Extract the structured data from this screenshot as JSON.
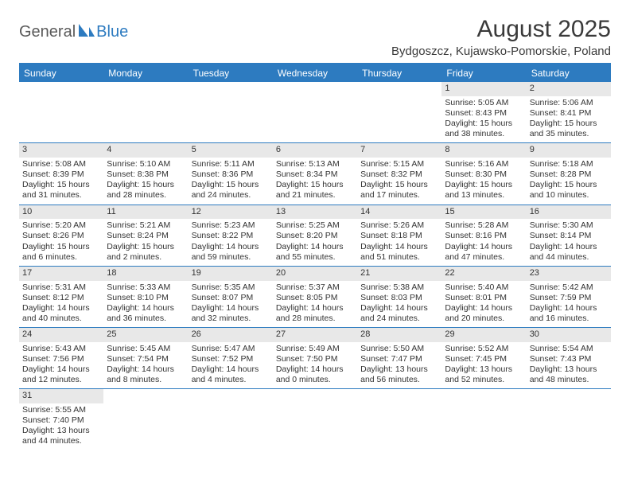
{
  "logo": {
    "text1": "General",
    "text2": "Blue",
    "text1_color": "#5a5a5a",
    "text2_color": "#2d7bc0",
    "icon_color": "#2d7bc0"
  },
  "title": "August 2025",
  "subtitle": "Bydgoszcz, Kujawsko-Pomorskie, Poland",
  "colors": {
    "header_bg": "#2d7bc0",
    "header_text": "#ffffff",
    "daynum_bg": "#e8e8e8",
    "border": "#2d7bc0",
    "text": "#333333"
  },
  "weekdays": [
    "Sunday",
    "Monday",
    "Tuesday",
    "Wednesday",
    "Thursday",
    "Friday",
    "Saturday"
  ],
  "weeks": [
    [
      {
        "n": "",
        "sr": "",
        "ss": "",
        "dl": ""
      },
      {
        "n": "",
        "sr": "",
        "ss": "",
        "dl": ""
      },
      {
        "n": "",
        "sr": "",
        "ss": "",
        "dl": ""
      },
      {
        "n": "",
        "sr": "",
        "ss": "",
        "dl": ""
      },
      {
        "n": "",
        "sr": "",
        "ss": "",
        "dl": ""
      },
      {
        "n": "1",
        "sr": "Sunrise: 5:05 AM",
        "ss": "Sunset: 8:43 PM",
        "dl": "Daylight: 15 hours and 38 minutes."
      },
      {
        "n": "2",
        "sr": "Sunrise: 5:06 AM",
        "ss": "Sunset: 8:41 PM",
        "dl": "Daylight: 15 hours and 35 minutes."
      }
    ],
    [
      {
        "n": "3",
        "sr": "Sunrise: 5:08 AM",
        "ss": "Sunset: 8:39 PM",
        "dl": "Daylight: 15 hours and 31 minutes."
      },
      {
        "n": "4",
        "sr": "Sunrise: 5:10 AM",
        "ss": "Sunset: 8:38 PM",
        "dl": "Daylight: 15 hours and 28 minutes."
      },
      {
        "n": "5",
        "sr": "Sunrise: 5:11 AM",
        "ss": "Sunset: 8:36 PM",
        "dl": "Daylight: 15 hours and 24 minutes."
      },
      {
        "n": "6",
        "sr": "Sunrise: 5:13 AM",
        "ss": "Sunset: 8:34 PM",
        "dl": "Daylight: 15 hours and 21 minutes."
      },
      {
        "n": "7",
        "sr": "Sunrise: 5:15 AM",
        "ss": "Sunset: 8:32 PM",
        "dl": "Daylight: 15 hours and 17 minutes."
      },
      {
        "n": "8",
        "sr": "Sunrise: 5:16 AM",
        "ss": "Sunset: 8:30 PM",
        "dl": "Daylight: 15 hours and 13 minutes."
      },
      {
        "n": "9",
        "sr": "Sunrise: 5:18 AM",
        "ss": "Sunset: 8:28 PM",
        "dl": "Daylight: 15 hours and 10 minutes."
      }
    ],
    [
      {
        "n": "10",
        "sr": "Sunrise: 5:20 AM",
        "ss": "Sunset: 8:26 PM",
        "dl": "Daylight: 15 hours and 6 minutes."
      },
      {
        "n": "11",
        "sr": "Sunrise: 5:21 AM",
        "ss": "Sunset: 8:24 PM",
        "dl": "Daylight: 15 hours and 2 minutes."
      },
      {
        "n": "12",
        "sr": "Sunrise: 5:23 AM",
        "ss": "Sunset: 8:22 PM",
        "dl": "Daylight: 14 hours and 59 minutes."
      },
      {
        "n": "13",
        "sr": "Sunrise: 5:25 AM",
        "ss": "Sunset: 8:20 PM",
        "dl": "Daylight: 14 hours and 55 minutes."
      },
      {
        "n": "14",
        "sr": "Sunrise: 5:26 AM",
        "ss": "Sunset: 8:18 PM",
        "dl": "Daylight: 14 hours and 51 minutes."
      },
      {
        "n": "15",
        "sr": "Sunrise: 5:28 AM",
        "ss": "Sunset: 8:16 PM",
        "dl": "Daylight: 14 hours and 47 minutes."
      },
      {
        "n": "16",
        "sr": "Sunrise: 5:30 AM",
        "ss": "Sunset: 8:14 PM",
        "dl": "Daylight: 14 hours and 44 minutes."
      }
    ],
    [
      {
        "n": "17",
        "sr": "Sunrise: 5:31 AM",
        "ss": "Sunset: 8:12 PM",
        "dl": "Daylight: 14 hours and 40 minutes."
      },
      {
        "n": "18",
        "sr": "Sunrise: 5:33 AM",
        "ss": "Sunset: 8:10 PM",
        "dl": "Daylight: 14 hours and 36 minutes."
      },
      {
        "n": "19",
        "sr": "Sunrise: 5:35 AM",
        "ss": "Sunset: 8:07 PM",
        "dl": "Daylight: 14 hours and 32 minutes."
      },
      {
        "n": "20",
        "sr": "Sunrise: 5:37 AM",
        "ss": "Sunset: 8:05 PM",
        "dl": "Daylight: 14 hours and 28 minutes."
      },
      {
        "n": "21",
        "sr": "Sunrise: 5:38 AM",
        "ss": "Sunset: 8:03 PM",
        "dl": "Daylight: 14 hours and 24 minutes."
      },
      {
        "n": "22",
        "sr": "Sunrise: 5:40 AM",
        "ss": "Sunset: 8:01 PM",
        "dl": "Daylight: 14 hours and 20 minutes."
      },
      {
        "n": "23",
        "sr": "Sunrise: 5:42 AM",
        "ss": "Sunset: 7:59 PM",
        "dl": "Daylight: 14 hours and 16 minutes."
      }
    ],
    [
      {
        "n": "24",
        "sr": "Sunrise: 5:43 AM",
        "ss": "Sunset: 7:56 PM",
        "dl": "Daylight: 14 hours and 12 minutes."
      },
      {
        "n": "25",
        "sr": "Sunrise: 5:45 AM",
        "ss": "Sunset: 7:54 PM",
        "dl": "Daylight: 14 hours and 8 minutes."
      },
      {
        "n": "26",
        "sr": "Sunrise: 5:47 AM",
        "ss": "Sunset: 7:52 PM",
        "dl": "Daylight: 14 hours and 4 minutes."
      },
      {
        "n": "27",
        "sr": "Sunrise: 5:49 AM",
        "ss": "Sunset: 7:50 PM",
        "dl": "Daylight: 14 hours and 0 minutes."
      },
      {
        "n": "28",
        "sr": "Sunrise: 5:50 AM",
        "ss": "Sunset: 7:47 PM",
        "dl": "Daylight: 13 hours and 56 minutes."
      },
      {
        "n": "29",
        "sr": "Sunrise: 5:52 AM",
        "ss": "Sunset: 7:45 PM",
        "dl": "Daylight: 13 hours and 52 minutes."
      },
      {
        "n": "30",
        "sr": "Sunrise: 5:54 AM",
        "ss": "Sunset: 7:43 PM",
        "dl": "Daylight: 13 hours and 48 minutes."
      }
    ],
    [
      {
        "n": "31",
        "sr": "Sunrise: 5:55 AM",
        "ss": "Sunset: 7:40 PM",
        "dl": "Daylight: 13 hours and 44 minutes."
      },
      {
        "n": "",
        "sr": "",
        "ss": "",
        "dl": ""
      },
      {
        "n": "",
        "sr": "",
        "ss": "",
        "dl": ""
      },
      {
        "n": "",
        "sr": "",
        "ss": "",
        "dl": ""
      },
      {
        "n": "",
        "sr": "",
        "ss": "",
        "dl": ""
      },
      {
        "n": "",
        "sr": "",
        "ss": "",
        "dl": ""
      },
      {
        "n": "",
        "sr": "",
        "ss": "",
        "dl": ""
      }
    ]
  ]
}
